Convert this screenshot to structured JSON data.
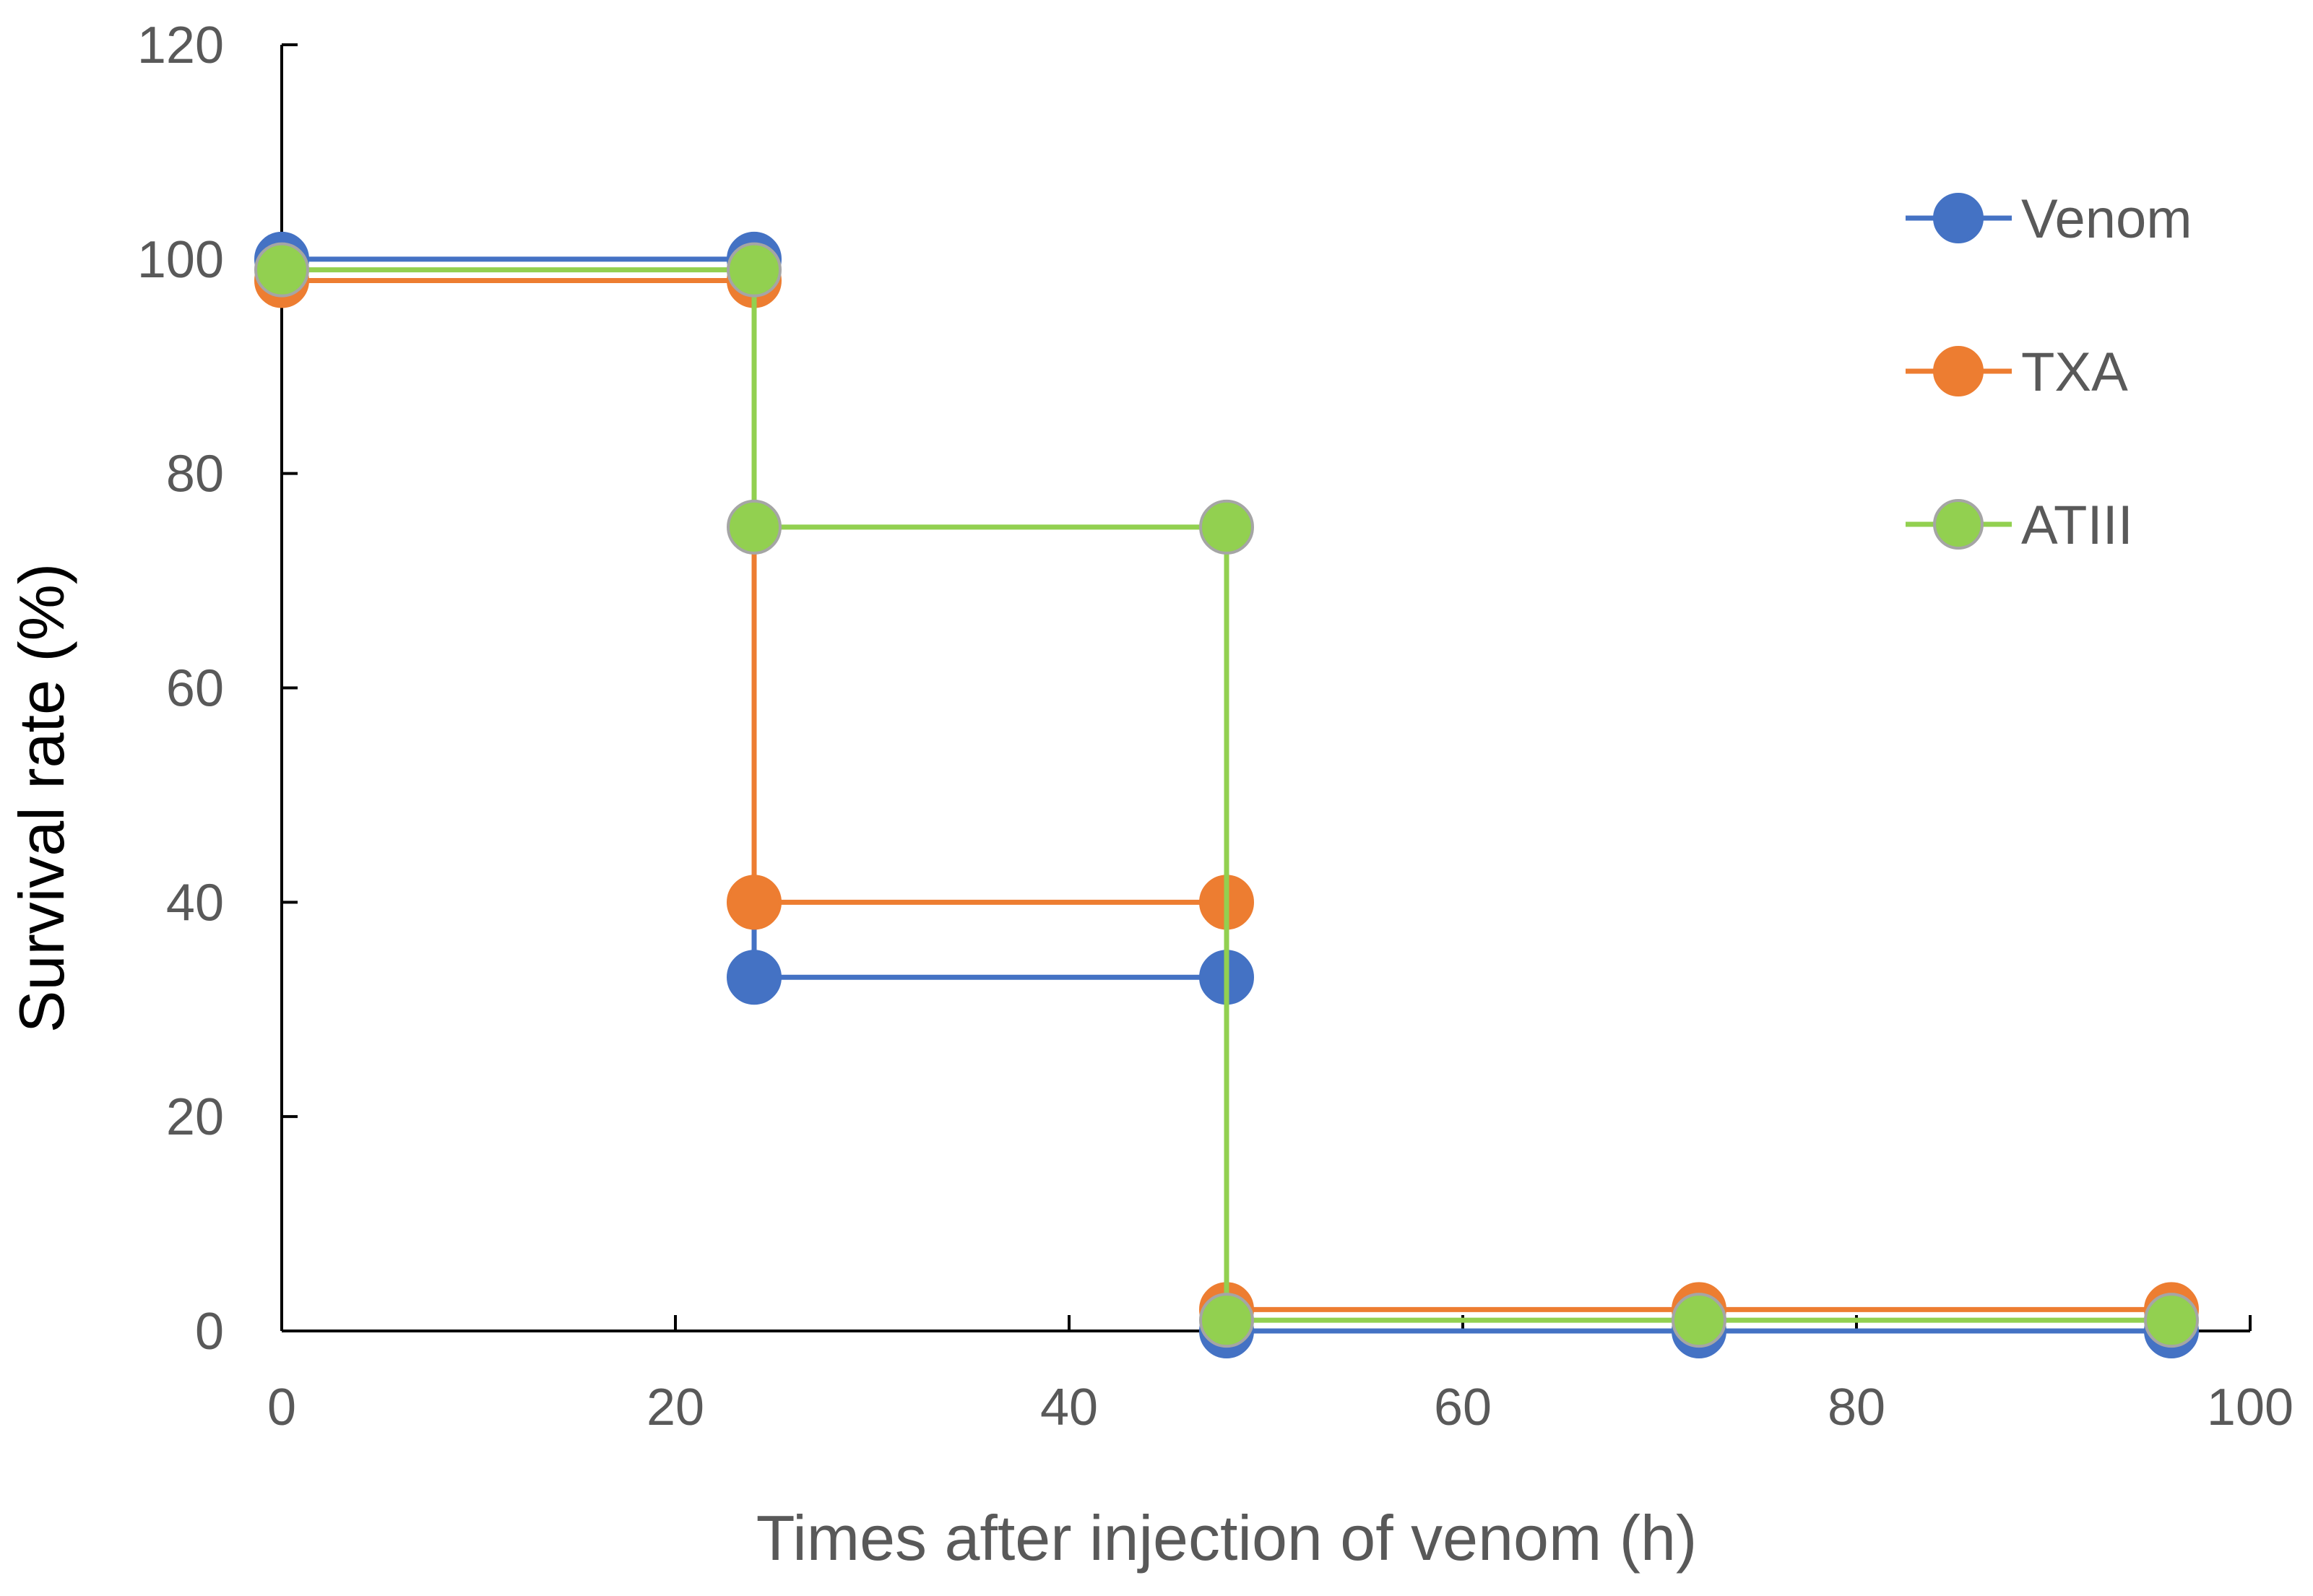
{
  "chart_data": {
    "type": "line",
    "title": "",
    "xlabel": "Times after injection of venom (h)",
    "ylabel": "Survival rate (%)",
    "xlim": [
      0,
      100
    ],
    "ylim": [
      0,
      120
    ],
    "xticks": [
      "0",
      "20",
      "40",
      "60",
      "80",
      "100"
    ],
    "yticks": [
      "0",
      "20",
      "40",
      "60",
      "80",
      "100",
      "120"
    ],
    "grid": false,
    "legend_position": "top-right",
    "step": true,
    "series": [
      {
        "name": "Venom",
        "color": "#4472C4",
        "x": [
          0,
          24,
          24,
          48,
          48,
          72,
          96
        ],
        "y": [
          100,
          100,
          33,
          33,
          0,
          0,
          0
        ]
      },
      {
        "name": "TXA",
        "color": "#ED7D31",
        "x": [
          0,
          24,
          24,
          48,
          48,
          72,
          96
        ],
        "y": [
          98,
          98,
          40,
          40,
          2,
          2,
          2
        ]
      },
      {
        "name": "ATIII",
        "color": "#92D050",
        "x": [
          0,
          24,
          24,
          48,
          48,
          72,
          96
        ],
        "y": [
          99,
          99,
          75,
          75,
          1,
          1,
          1
        ]
      }
    ]
  }
}
